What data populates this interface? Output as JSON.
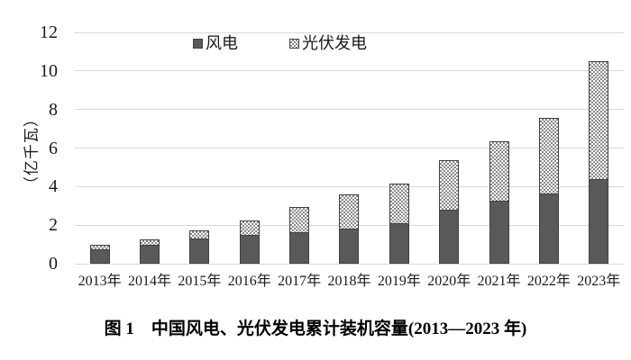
{
  "figure": {
    "caption": "图 1　中国风电、光伏发电累计装机容量(2013—2023 年)"
  },
  "chart_data": {
    "type": "bar",
    "stacked": true,
    "title": "",
    "y_axis_title": "（亿千瓦）",
    "xlabel": "",
    "ylabel": "亿千瓦",
    "categories": [
      "2013年",
      "2014年",
      "2015年",
      "2016年",
      "2017年",
      "2018年",
      "2019年",
      "2020年",
      "2021年",
      "2022年",
      "2023年"
    ],
    "series": [
      {
        "name": "风电",
        "values": [
          0.77,
          0.96,
          1.31,
          1.49,
          1.64,
          1.84,
          2.1,
          2.82,
          3.28,
          3.65,
          4.41
        ]
      },
      {
        "name": "光伏发电",
        "values": [
          0.19,
          0.28,
          0.43,
          0.77,
          1.3,
          1.74,
          2.04,
          2.53,
          3.06,
          3.93,
          6.09
        ]
      }
    ],
    "totals": [
      0.96,
      1.24,
      1.74,
      2.26,
      2.94,
      3.58,
      4.14,
      5.35,
      6.34,
      7.58,
      10.5
    ],
    "ylim": [
      0,
      12
    ],
    "y_ticks": [
      0,
      2,
      4,
      6,
      8,
      10,
      12
    ],
    "grid": true,
    "legend_position": "top-center",
    "colors": {
      "wind_fill": "#595959",
      "bar_border": "#404040",
      "solar_pattern_fg": "#8a8a8a",
      "solar_pattern_bg": "#ffffff",
      "gridline": "#d9d9d9",
      "text": "#1a1a1a"
    }
  }
}
